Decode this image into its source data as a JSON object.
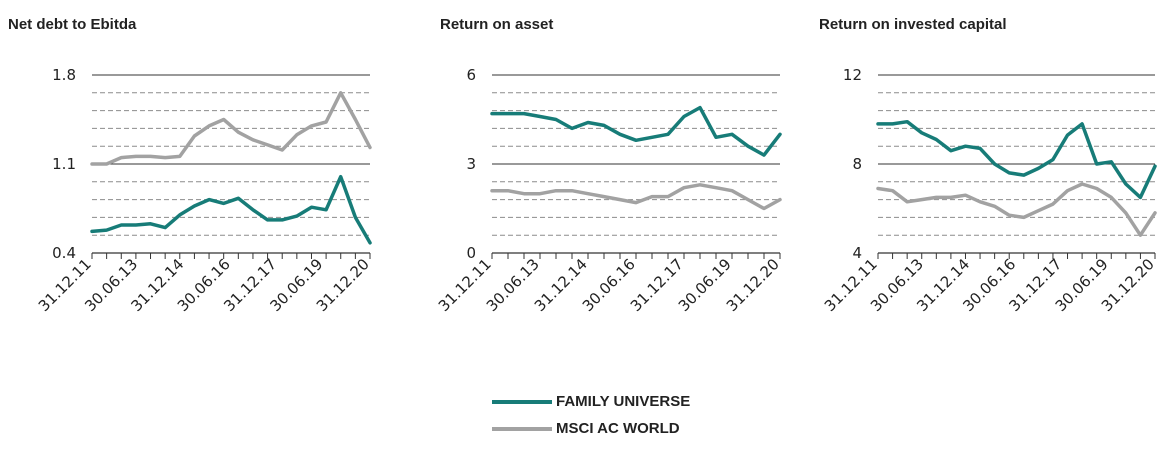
{
  "colors": {
    "family": "#177c78",
    "msci": "#a2a2a2",
    "axis": "#333333",
    "grid": "#8c8c8c"
  },
  "legend": [
    {
      "label": "FAMILY UNIVERSE",
      "color": "#177c78"
    },
    {
      "label": "MSCI AC WORLD",
      "color": "#a2a2a2"
    }
  ],
  "chart_data": [
    {
      "type": "line",
      "title": "Net debt to Ebitda",
      "xlabel": "",
      "ylabel": "",
      "ylim": [
        0.4,
        1.8
      ],
      "yticks": [
        0.4,
        1.1,
        1.8
      ],
      "xtick_labels": [
        "31.12.11",
        "30.06.13",
        "31.12.14",
        "30.06.16",
        "31.12.17",
        "30.06.19",
        "31.12.20"
      ],
      "grid": "dashed horizontal",
      "series": [
        {
          "name": "FAMILY UNIVERSE",
          "color": "#177c78",
          "values": [
            0.57,
            0.58,
            0.62,
            0.62,
            0.63,
            0.6,
            0.7,
            0.77,
            0.82,
            0.79,
            0.83,
            0.74,
            0.66,
            0.66,
            0.69,
            0.76,
            0.74,
            1.0,
            0.68,
            0.48
          ]
        },
        {
          "name": "MSCI AC WORLD",
          "color": "#a2a2a2",
          "values": [
            1.1,
            1.1,
            1.15,
            1.16,
            1.16,
            1.15,
            1.16,
            1.32,
            1.4,
            1.45,
            1.35,
            1.29,
            1.25,
            1.21,
            1.33,
            1.4,
            1.43,
            1.66,
            1.45,
            1.23
          ]
        }
      ]
    },
    {
      "type": "line",
      "title": "Return on asset",
      "xlabel": "",
      "ylabel": "",
      "ylim": [
        0,
        6
      ],
      "yticks": [
        0,
        3,
        6
      ],
      "xtick_labels": [
        "31.12.11",
        "30.06.13",
        "31.12.14",
        "30.06.16",
        "31.12.17",
        "30.06.19",
        "31.12.20"
      ],
      "grid": "dashed horizontal",
      "series": [
        {
          "name": "FAMILY UNIVERSE",
          "color": "#177c78",
          "values": [
            4.7,
            4.7,
            4.7,
            4.6,
            4.5,
            4.2,
            4.4,
            4.3,
            4.0,
            3.8,
            3.9,
            4.0,
            4.6,
            4.9,
            3.9,
            4.0,
            3.6,
            3.3,
            4.0
          ]
        },
        {
          "name": "MSCI AC WORLD",
          "color": "#a2a2a2",
          "values": [
            2.1,
            2.1,
            2.0,
            2.0,
            2.1,
            2.1,
            2.0,
            1.9,
            1.8,
            1.7,
            1.9,
            1.9,
            2.2,
            2.3,
            2.2,
            2.1,
            1.8,
            1.5,
            1.8
          ]
        }
      ]
    },
    {
      "type": "line",
      "title": "Return on invested capital",
      "xlabel": "",
      "ylabel": "",
      "ylim": [
        4,
        12
      ],
      "yticks": [
        4,
        8,
        12
      ],
      "xtick_labels": [
        "31.12.11",
        "30.06.13",
        "31.12.14",
        "30.06.16",
        "31.12.17",
        "30.06.19",
        "31.12.20"
      ],
      "grid": "dashed horizontal",
      "series": [
        {
          "name": "FAMILY UNIVERSE",
          "color": "#177c78",
          "values": [
            9.8,
            9.8,
            9.9,
            9.4,
            9.1,
            8.6,
            8.8,
            8.7,
            8.0,
            7.6,
            7.5,
            7.8,
            8.2,
            9.3,
            9.8,
            8.0,
            8.1,
            7.1,
            6.5,
            7.9
          ]
        },
        {
          "name": "MSCI AC WORLD",
          "color": "#a2a2a2",
          "values": [
            6.9,
            6.8,
            6.3,
            6.4,
            6.5,
            6.5,
            6.6,
            6.3,
            6.1,
            5.7,
            5.6,
            5.9,
            6.2,
            6.8,
            7.1,
            6.9,
            6.5,
            5.8,
            4.8,
            5.8
          ]
        }
      ]
    }
  ]
}
